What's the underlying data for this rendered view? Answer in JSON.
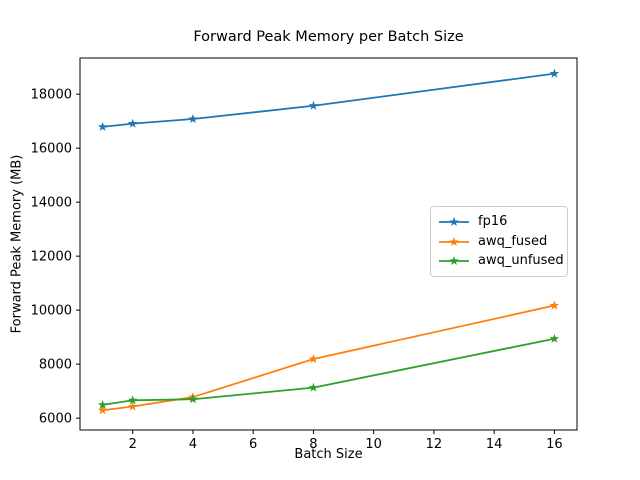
{
  "chart_data": {
    "type": "line",
    "title": "Forward Peak Memory per Batch Size",
    "xlabel": "Batch Size",
    "ylabel": "Forward Peak Memory (MB)",
    "x": [
      1,
      2,
      4,
      8,
      16
    ],
    "series": [
      {
        "name": "fp16",
        "color": "#1f77b4",
        "marker": "star",
        "values": [
          16790,
          16910,
          17080,
          17570,
          18760
        ]
      },
      {
        "name": "awq_fused",
        "color": "#ff7f0e",
        "marker": "star",
        "values": [
          6290,
          6430,
          6780,
          8190,
          10170
        ]
      },
      {
        "name": "awq_unfused",
        "color": "#2ca02c",
        "marker": "star",
        "values": [
          6490,
          6660,
          6700,
          7130,
          8940
        ]
      }
    ],
    "xlim": [
      0.25,
      16.75
    ],
    "ylim": [
      5560,
      19340
    ],
    "xticks": [
      2,
      4,
      6,
      8,
      10,
      12,
      14,
      16
    ],
    "yticks": [
      6000,
      8000,
      10000,
      12000,
      14000,
      16000,
      18000
    ],
    "grid": false,
    "legend_position": "center right",
    "axes_color": "#000000",
    "background_color": "#ffffff"
  }
}
